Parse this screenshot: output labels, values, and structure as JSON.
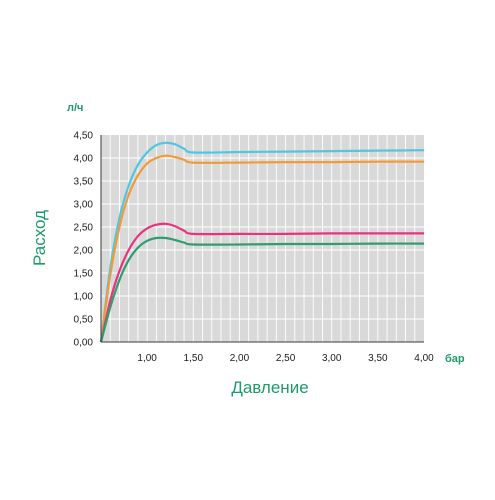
{
  "chart_data": {
    "type": "line",
    "title": "",
    "xlabel": "Давление",
    "ylabel": "Расход",
    "x_unit": "бар",
    "y_unit": "л/ч",
    "xlim": [
      0.5,
      4.0
    ],
    "ylim": [
      0,
      4.5
    ],
    "x_ticks": [
      1.0,
      1.5,
      2.0,
      2.5,
      3.0,
      3.5,
      4.0
    ],
    "x_tick_labels": [
      "1,00",
      "1,50",
      "2,00",
      "2,50",
      "3,00",
      "3,50",
      "4,00"
    ],
    "y_ticks": [
      0,
      0.5,
      1.0,
      1.5,
      2.0,
      2.5,
      3.0,
      3.5,
      4.0,
      4.5
    ],
    "y_tick_labels": [
      "0,00",
      "0,50",
      "1,00",
      "1,50",
      "2,00",
      "2,50",
      "3,00",
      "3,50",
      "4,00",
      "4,50"
    ],
    "grid": true,
    "background": "#d9d9d9",
    "series": [
      {
        "color": "#4ec8e0",
        "x": [
          0.5,
          0.6,
          0.7,
          0.8,
          0.9,
          1.0,
          1.1,
          1.2,
          1.3,
          1.4,
          1.5,
          2.0,
          2.5,
          3.0,
          3.5,
          4.0
        ],
        "values": [
          0.0,
          1.6,
          2.7,
          3.4,
          3.85,
          4.12,
          4.28,
          4.33,
          4.3,
          4.2,
          4.12,
          4.13,
          4.14,
          4.15,
          4.16,
          4.17
        ]
      },
      {
        "color": "#f29a3a",
        "x": [
          0.5,
          0.6,
          0.7,
          0.8,
          0.9,
          1.0,
          1.1,
          1.2,
          1.3,
          1.4,
          1.5,
          2.0,
          2.5,
          3.0,
          3.5,
          4.0
        ],
        "values": [
          0.0,
          1.45,
          2.5,
          3.2,
          3.62,
          3.88,
          4.0,
          4.05,
          4.02,
          3.96,
          3.9,
          3.9,
          3.91,
          3.91,
          3.92,
          3.92
        ]
      },
      {
        "color": "#e8337f",
        "x": [
          0.5,
          0.6,
          0.7,
          0.8,
          0.9,
          1.0,
          1.1,
          1.2,
          1.3,
          1.4,
          1.5,
          2.0,
          2.5,
          3.0,
          3.5,
          4.0
        ],
        "values": [
          0.0,
          0.9,
          1.55,
          2.0,
          2.3,
          2.47,
          2.55,
          2.57,
          2.52,
          2.42,
          2.35,
          2.35,
          2.35,
          2.36,
          2.36,
          2.36
        ]
      },
      {
        "color": "#2e9e6e",
        "x": [
          0.5,
          0.6,
          0.7,
          0.8,
          0.9,
          1.0,
          1.1,
          1.2,
          1.3,
          1.4,
          1.5,
          2.0,
          2.5,
          3.0,
          3.5,
          4.0
        ],
        "values": [
          0.0,
          0.75,
          1.35,
          1.78,
          2.05,
          2.2,
          2.26,
          2.26,
          2.22,
          2.16,
          2.12,
          2.12,
          2.13,
          2.13,
          2.14,
          2.14
        ]
      }
    ]
  }
}
